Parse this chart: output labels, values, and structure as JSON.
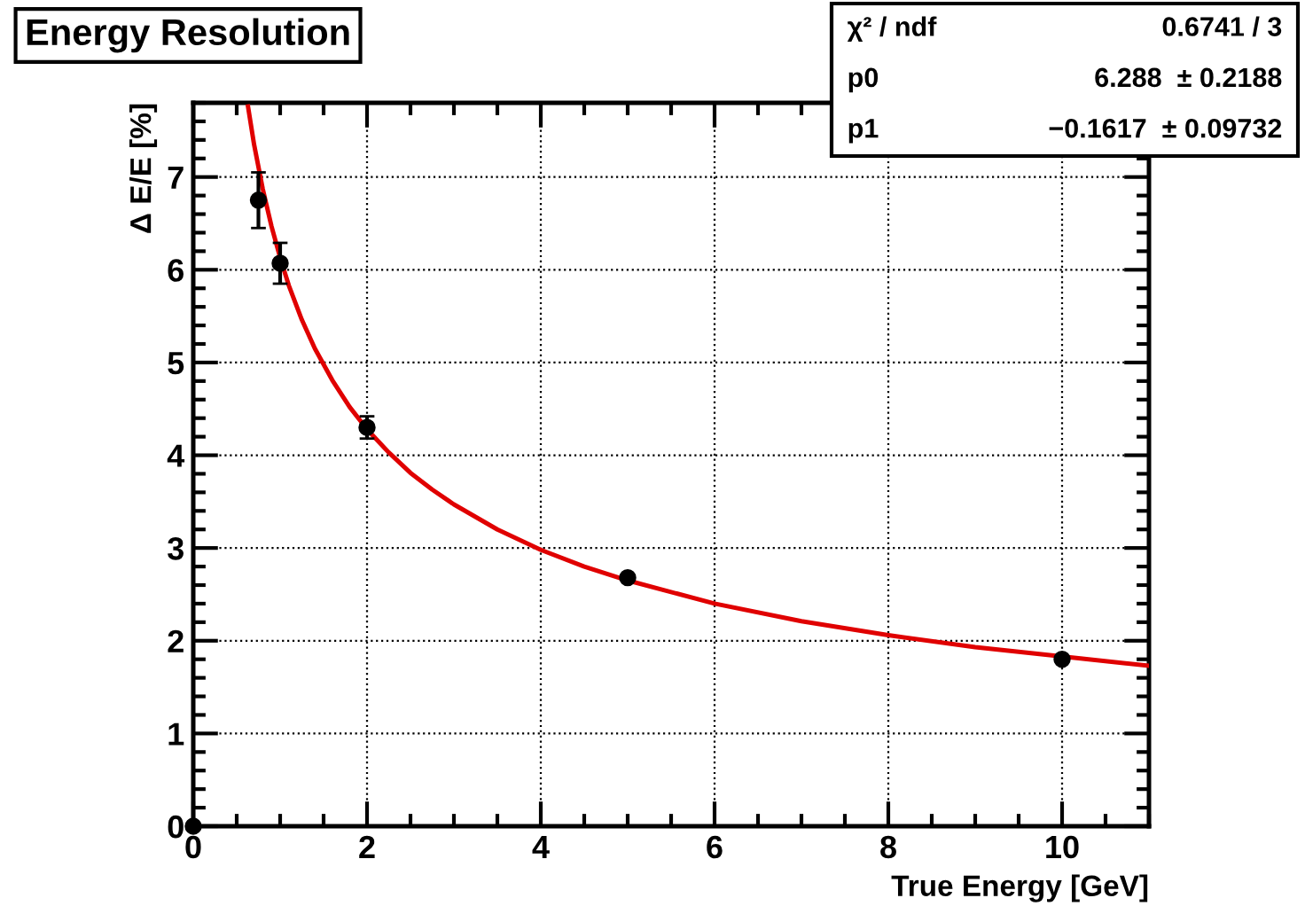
{
  "chart_data": {
    "type": "scatter",
    "title": "Energy Resolution",
    "xlabel": "True Energy [GeV]",
    "ylabel": "Δ E/E [%]",
    "annotations": [
      "χ² / ndf",
      "0.6741 / 3",
      "p0",
      "6.288  ± 0.2188",
      "p1",
      "−0.1617  ± 0.09732"
    ],
    "series": [
      {
        "color": "#000000",
        "marker": "circle",
        "x": [
          0,
          0.75,
          1,
          2,
          5,
          10
        ],
        "values": [
          0,
          6.75,
          6.07,
          4.3,
          2.68,
          1.8
        ],
        "errors": [
          null,
          0.3,
          0.22,
          0.12,
          null,
          null
        ]
      },
      {
        "type": "line",
        "color": "#e00000",
        "marker": "none",
        "x": [
          0.63,
          0.7,
          0.8,
          0.9,
          1,
          1.1,
          1.25,
          1.4,
          1.6,
          1.8,
          2,
          2.25,
          2.5,
          2.75,
          3,
          3.5,
          4,
          4.5,
          5,
          6,
          7,
          8,
          9,
          10,
          11
        ],
        "values": [
          7.76,
          7.35,
          6.87,
          6.47,
          6.13,
          5.83,
          5.46,
          5.15,
          4.81,
          4.52,
          4.28,
          4.03,
          3.81,
          3.63,
          3.47,
          3.2,
          2.98,
          2.8,
          2.65,
          2.4,
          2.21,
          2.06,
          1.93,
          1.83,
          1.73
        ]
      }
    ],
    "xlim": [
      0,
      11
    ],
    "ylim": [
      0,
      7.8
    ],
    "xticks": [
      0,
      2,
      4,
      6,
      8,
      10
    ],
    "yticks": [
      0,
      1,
      2,
      3,
      4,
      5,
      6,
      7
    ],
    "grid": true
  }
}
